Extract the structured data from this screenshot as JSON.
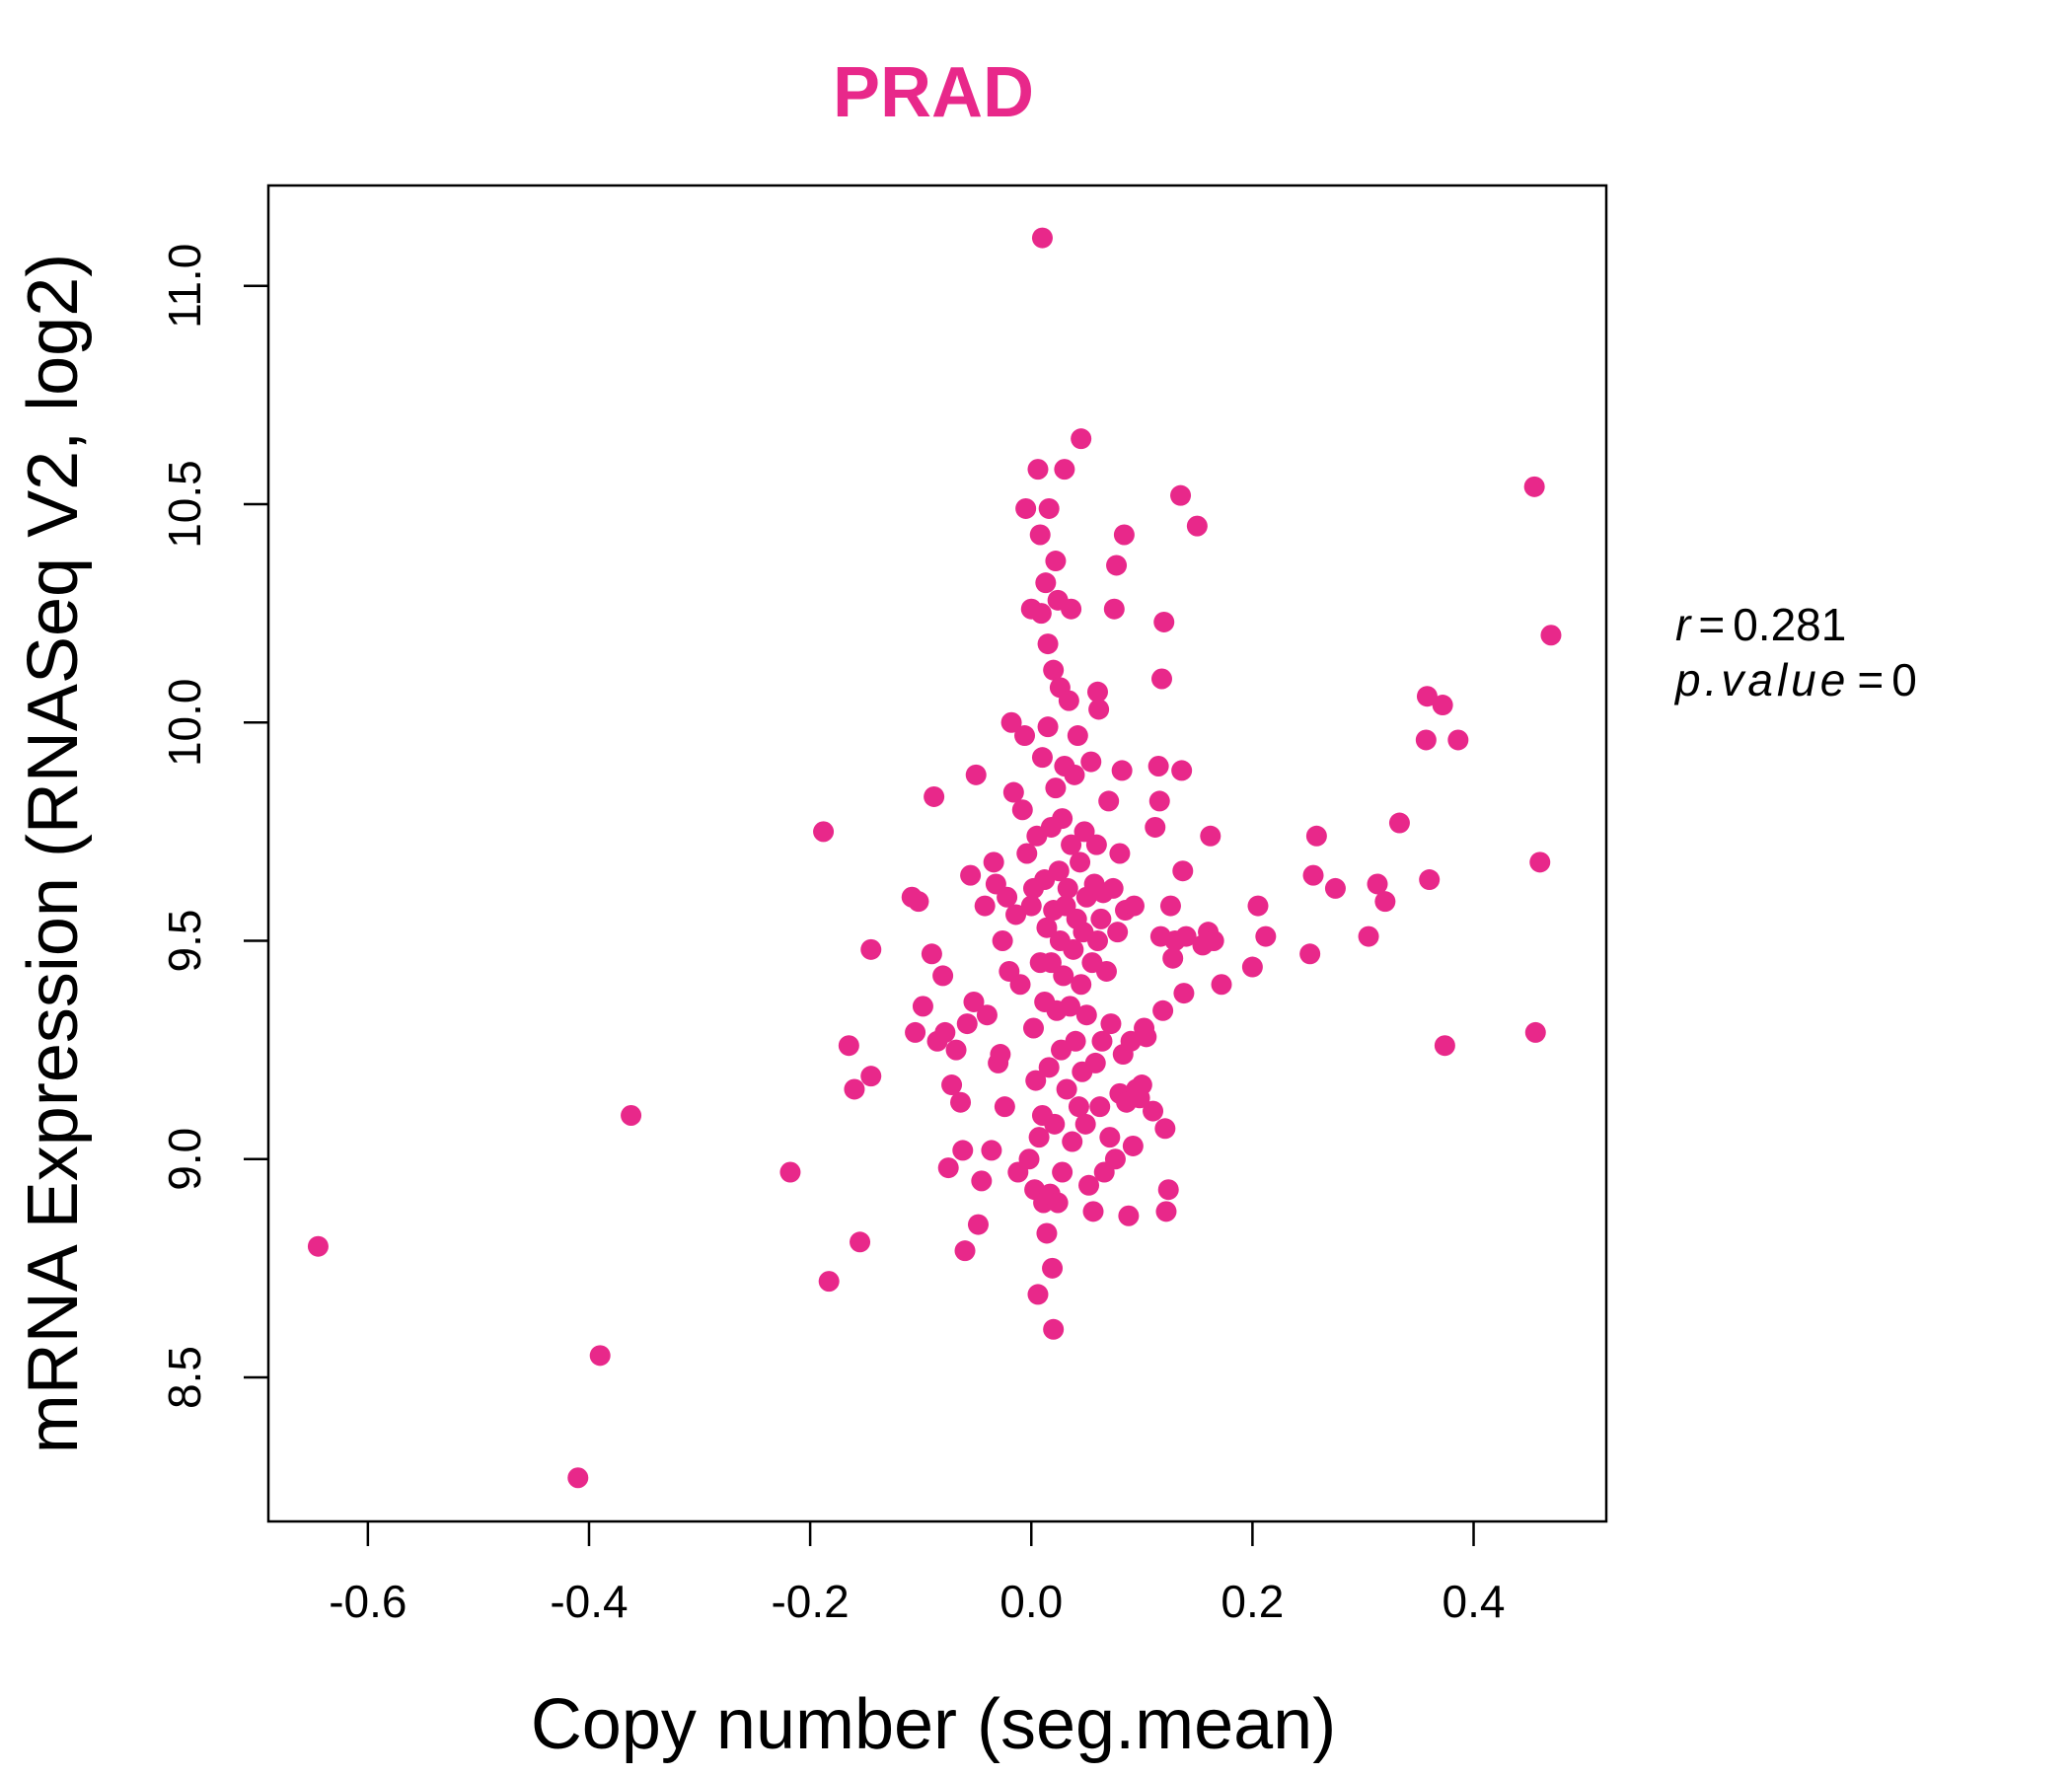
{
  "chart_data": {
    "type": "scatter",
    "title": "PRAD",
    "xlabel": "Copy number (seg.mean)",
    "ylabel": "mRNA Expression (RNASeq V2, log2)",
    "xlim": [
      -0.69,
      0.52
    ],
    "ylim": [
      8.17,
      11.23
    ],
    "xticks": [
      -0.6,
      -0.4,
      -0.2,
      0.0,
      0.2,
      0.4
    ],
    "xtick_labels": [
      "-0.6",
      "-0.4",
      "-0.2",
      "0.0",
      "0.2",
      "0.4"
    ],
    "yticks": [
      8.5,
      9.0,
      9.5,
      10.0,
      10.5,
      11.0
    ],
    "ytick_labels": [
      "8.5",
      "9.0",
      "9.5",
      "10.0",
      "10.5",
      "11.0"
    ],
    "grid": false,
    "color": "#E8288A",
    "annotations": {
      "r_label": "r",
      "r_value": "0.281",
      "p_label": "p.value",
      "p_value": "0",
      "equals": "="
    },
    "points": [
      [
        -0.645,
        8.8
      ],
      [
        -0.41,
        8.27
      ],
      [
        -0.39,
        8.55
      ],
      [
        -0.362,
        9.1
      ],
      [
        -0.218,
        8.97
      ],
      [
        -0.188,
        9.75
      ],
      [
        -0.183,
        8.72
      ],
      [
        -0.155,
        8.81
      ],
      [
        -0.16,
        9.16
      ],
      [
        -0.165,
        9.26
      ],
      [
        -0.145,
        9.19
      ],
      [
        -0.145,
        9.48
      ],
      [
        -0.108,
        9.6
      ],
      [
        -0.102,
        9.59
      ],
      [
        -0.105,
        9.29
      ],
      [
        -0.098,
        9.35
      ],
      [
        -0.09,
        9.47
      ],
      [
        -0.088,
        9.83
      ],
      [
        -0.085,
        9.27
      ],
      [
        -0.08,
        9.42
      ],
      [
        -0.078,
        9.29
      ],
      [
        -0.075,
        8.98
      ],
      [
        -0.072,
        9.17
      ],
      [
        -0.068,
        9.25
      ],
      [
        -0.064,
        9.13
      ],
      [
        -0.062,
        9.02
      ],
      [
        -0.06,
        8.79
      ],
      [
        -0.058,
        9.31
      ],
      [
        -0.055,
        9.65
      ],
      [
        -0.052,
        9.36
      ],
      [
        -0.05,
        9.88
      ],
      [
        -0.048,
        8.85
      ],
      [
        -0.045,
        8.95
      ],
      [
        -0.042,
        9.58
      ],
      [
        -0.04,
        9.33
      ],
      [
        -0.036,
        9.02
      ],
      [
        -0.034,
        9.68
      ],
      [
        -0.032,
        9.63
      ],
      [
        -0.03,
        9.22
      ],
      [
        -0.028,
        9.24
      ],
      [
        -0.026,
        9.5
      ],
      [
        -0.024,
        9.12
      ],
      [
        -0.022,
        9.6
      ],
      [
        -0.02,
        9.43
      ],
      [
        -0.018,
        10.0
      ],
      [
        -0.016,
        9.84
      ],
      [
        -0.014,
        9.56
      ],
      [
        -0.012,
        8.97
      ],
      [
        -0.01,
        9.4
      ],
      [
        -0.008,
        9.8
      ],
      [
        -0.006,
        9.97
      ],
      [
        -0.005,
        10.49
      ],
      [
        -0.004,
        9.7
      ],
      [
        -0.002,
        9.0
      ],
      [
        0.0,
        10.26
      ],
      [
        0.0,
        9.58
      ],
      [
        0.002,
        9.3
      ],
      [
        0.002,
        9.62
      ],
      [
        0.003,
        8.93
      ],
      [
        0.004,
        9.18
      ],
      [
        0.005,
        9.74
      ],
      [
        0.006,
        8.69
      ],
      [
        0.006,
        10.58
      ],
      [
        0.007,
        9.05
      ],
      [
        0.008,
        10.43
      ],
      [
        0.008,
        9.45
      ],
      [
        0.009,
        10.25
      ],
      [
        0.01,
        11.11
      ],
      [
        0.01,
        9.92
      ],
      [
        0.01,
        9.1
      ],
      [
        0.011,
        8.9
      ],
      [
        0.012,
        9.64
      ],
      [
        0.012,
        9.36
      ],
      [
        0.013,
        10.32
      ],
      [
        0.014,
        8.83
      ],
      [
        0.014,
        9.53
      ],
      [
        0.015,
        10.18
      ],
      [
        0.015,
        9.99
      ],
      [
        0.016,
        10.49
      ],
      [
        0.016,
        9.21
      ],
      [
        0.017,
        8.92
      ],
      [
        0.018,
        9.76
      ],
      [
        0.018,
        9.45
      ],
      [
        0.019,
        8.75
      ],
      [
        0.02,
        8.61
      ],
      [
        0.02,
        10.12
      ],
      [
        0.02,
        9.57
      ],
      [
        0.021,
        9.08
      ],
      [
        0.022,
        10.37
      ],
      [
        0.022,
        9.85
      ],
      [
        0.023,
        9.34
      ],
      [
        0.024,
        10.28
      ],
      [
        0.024,
        8.9
      ],
      [
        0.025,
        9.66
      ],
      [
        0.026,
        9.5
      ],
      [
        0.026,
        10.08
      ],
      [
        0.027,
        9.25
      ],
      [
        0.028,
        9.78
      ],
      [
        0.028,
        8.97
      ],
      [
        0.029,
        9.42
      ],
      [
        0.03,
        10.58
      ],
      [
        0.03,
        9.9
      ],
      [
        0.031,
        9.58
      ],
      [
        0.032,
        9.16
      ],
      [
        0.033,
        9.62
      ],
      [
        0.034,
        10.05
      ],
      [
        0.035,
        9.35
      ],
      [
        0.036,
        10.26
      ],
      [
        0.036,
        9.72
      ],
      [
        0.037,
        9.04
      ],
      [
        0.038,
        9.48
      ],
      [
        0.039,
        9.88
      ],
      [
        0.04,
        9.27
      ],
      [
        0.041,
        9.55
      ],
      [
        0.042,
        9.97
      ],
      [
        0.043,
        9.12
      ],
      [
        0.044,
        9.68
      ],
      [
        0.045,
        10.65
      ],
      [
        0.045,
        9.4
      ],
      [
        0.046,
        9.2
      ],
      [
        0.047,
        9.52
      ],
      [
        0.048,
        9.75
      ],
      [
        0.049,
        9.08
      ],
      [
        0.05,
        9.6
      ],
      [
        0.05,
        9.33
      ],
      [
        0.052,
        8.94
      ],
      [
        0.054,
        9.91
      ],
      [
        0.055,
        9.45
      ],
      [
        0.056,
        8.88
      ],
      [
        0.057,
        9.63
      ],
      [
        0.058,
        9.22
      ],
      [
        0.059,
        9.72
      ],
      [
        0.06,
        10.07
      ],
      [
        0.06,
        9.5
      ],
      [
        0.061,
        10.03
      ],
      [
        0.062,
        9.12
      ],
      [
        0.063,
        9.55
      ],
      [
        0.064,
        9.27
      ],
      [
        0.065,
        9.61
      ],
      [
        0.066,
        8.97
      ],
      [
        0.068,
        9.43
      ],
      [
        0.07,
        9.82
      ],
      [
        0.071,
        9.05
      ],
      [
        0.072,
        9.31
      ],
      [
        0.074,
        9.62
      ],
      [
        0.075,
        10.26
      ],
      [
        0.076,
        9.0
      ],
      [
        0.077,
        10.36
      ],
      [
        0.078,
        9.52
      ],
      [
        0.08,
        9.15
      ],
      [
        0.08,
        9.7
      ],
      [
        0.082,
        9.89
      ],
      [
        0.083,
        9.24
      ],
      [
        0.084,
        10.43
      ],
      [
        0.085,
        9.57
      ],
      [
        0.086,
        9.13
      ],
      [
        0.088,
        8.87
      ],
      [
        0.09,
        9.27
      ],
      [
        0.092,
        9.03
      ],
      [
        0.093,
        9.58
      ],
      [
        0.095,
        9.16
      ],
      [
        0.098,
        9.14
      ],
      [
        0.1,
        9.17
      ],
      [
        0.102,
        9.3
      ],
      [
        0.104,
        9.28
      ],
      [
        0.11,
        9.11
      ],
      [
        0.112,
        9.76
      ],
      [
        0.115,
        9.9
      ],
      [
        0.116,
        9.82
      ],
      [
        0.117,
        9.51
      ],
      [
        0.118,
        10.1
      ],
      [
        0.119,
        9.34
      ],
      [
        0.12,
        10.23
      ],
      [
        0.121,
        9.07
      ],
      [
        0.122,
        8.88
      ],
      [
        0.124,
        8.93
      ],
      [
        0.126,
        9.58
      ],
      [
        0.128,
        9.46
      ],
      [
        0.13,
        9.5
      ],
      [
        0.135,
        10.52
      ],
      [
        0.136,
        9.89
      ],
      [
        0.137,
        9.66
      ],
      [
        0.138,
        9.38
      ],
      [
        0.14,
        9.51
      ],
      [
        0.15,
        10.45
      ],
      [
        0.155,
        9.49
      ],
      [
        0.16,
        9.52
      ],
      [
        0.162,
        9.74
      ],
      [
        0.165,
        9.5
      ],
      [
        0.172,
        9.4
      ],
      [
        0.2,
        9.44
      ],
      [
        0.205,
        9.58
      ],
      [
        0.212,
        9.51
      ],
      [
        0.252,
        9.47
      ],
      [
        0.255,
        9.65
      ],
      [
        0.258,
        9.74
      ],
      [
        0.275,
        9.62
      ],
      [
        0.305,
        9.51
      ],
      [
        0.313,
        9.63
      ],
      [
        0.32,
        9.59
      ],
      [
        0.333,
        9.77
      ],
      [
        0.357,
        9.96
      ],
      [
        0.358,
        10.06
      ],
      [
        0.36,
        9.64
      ],
      [
        0.372,
        10.04
      ],
      [
        0.374,
        9.26
      ],
      [
        0.386,
        9.96
      ],
      [
        0.455,
        10.54
      ],
      [
        0.456,
        9.29
      ],
      [
        0.46,
        9.68
      ],
      [
        0.47,
        10.2
      ]
    ]
  }
}
